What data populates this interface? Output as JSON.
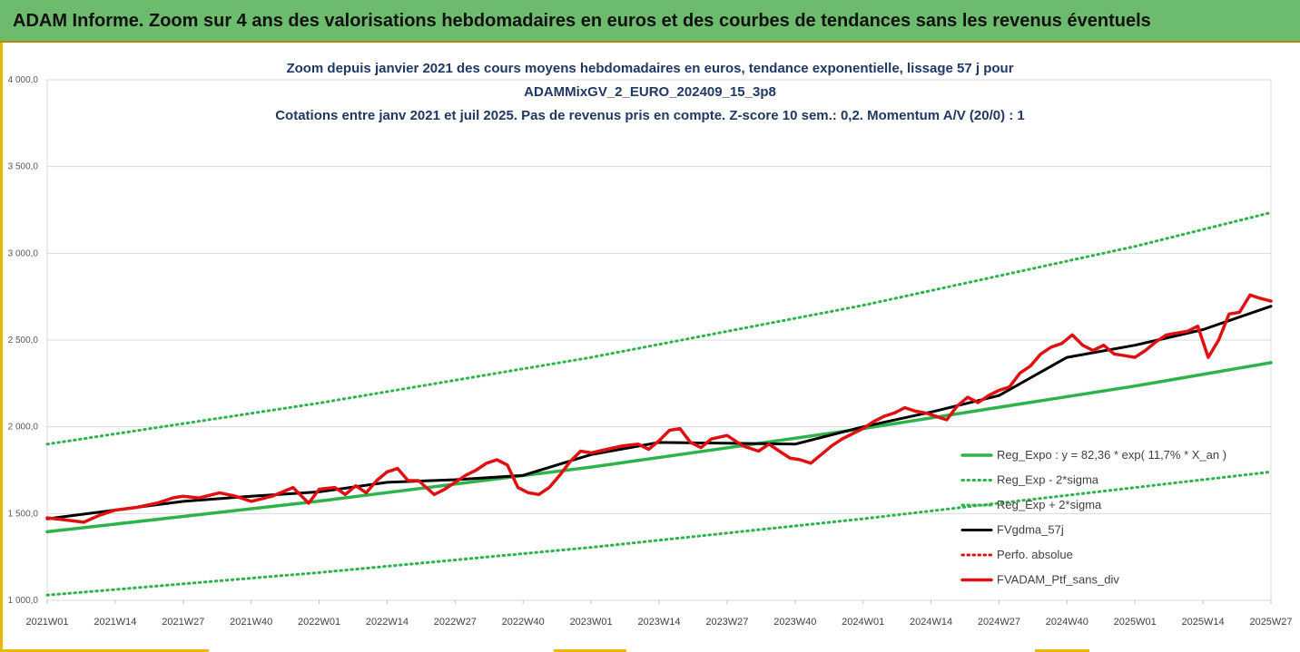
{
  "banner": {
    "title": "ADAM Informe. Zoom sur 4 ans des valorisations hebdomadaires en euros et des courbes de tendances sans les revenus éventuels"
  },
  "colors": {
    "banner_bg": "#6dbb6c",
    "title_text": "#1f3864",
    "regression": "#2db34a",
    "sigma": "#2db34a",
    "smoothed": "#000000",
    "portfolio": "#e01010",
    "accent_frame": "#e8b90c"
  },
  "chart_data": {
    "type": "line",
    "title_lines": [
      "Zoom depuis janvier 2021 des cours moyens hebdomadaires  en euros, tendance exponentielle, lissage 57 j pour",
      "ADAMMixGV_2_EURO_202409_15_3p8",
      "Cotations entre janv 2021 et juil 2025. Pas de revenus pris en compte. Z-score 10 sem.: 0,2. Momentum A/V (20/0) : 1"
    ],
    "xlabel": "",
    "ylabel": "",
    "ylim": [
      1000,
      4000
    ],
    "y_ticks": [
      "1 000,0",
      "1 500,0",
      "2 000,0",
      "2 500,0",
      "3 000,0",
      "3 500,0",
      "4 000,0"
    ],
    "x_ticks": [
      "2021W01",
      "2021W14",
      "2021W27",
      "2021W40",
      "2022W01",
      "2022W14",
      "2022W27",
      "2022W40",
      "2023W01",
      "2023W14",
      "2023W27",
      "2023W40",
      "2024W01",
      "2024W14",
      "2024W27",
      "2024W40",
      "2025W01",
      "2025W14",
      "2025W27"
    ],
    "grid": "horizontal",
    "legend_position": "right",
    "series": [
      {
        "name": "Reg_Expo : y = 82,36 * exp( 11,7% *  X_an )",
        "style": "solid-thick",
        "color": "#2db34a",
        "x": [
          "2021W01",
          "2022W01",
          "2023W01",
          "2024W01",
          "2025W01",
          "2025W27"
        ],
        "values": [
          1395,
          1572,
          1768,
          1990,
          2235,
          2370
        ]
      },
      {
        "name": "Reg_Exp - 2*sigma",
        "style": "dotted",
        "color": "#2db34a",
        "x": [
          "2021W01",
          "2022W01",
          "2023W01",
          "2024W01",
          "2025W01",
          "2025W27"
        ],
        "values": [
          1900,
          2137,
          2400,
          2700,
          3040,
          3235
        ]
      },
      {
        "name": "Reg_Exp + 2*sigma",
        "style": "dotted",
        "color": "#2db34a",
        "x": [
          "2021W01",
          "2022W01",
          "2023W01",
          "2024W01",
          "2025W01",
          "2025W27"
        ],
        "values": [
          1030,
          1160,
          1305,
          1470,
          1650,
          1740
        ]
      },
      {
        "name": "FVgdma_57j",
        "style": "solid",
        "color": "#000000",
        "x": [
          "2021W01",
          "2021W14",
          "2021W27",
          "2021W40",
          "2022W01",
          "2022W14",
          "2022W27",
          "2022W40",
          "2023W01",
          "2023W14",
          "2023W27",
          "2023W40",
          "2024W01",
          "2024W14",
          "2024W27",
          "2024W40",
          "2025W01",
          "2025W14",
          "2025W27"
        ],
        "values": [
          1470,
          1520,
          1570,
          1600,
          1625,
          1680,
          1695,
          1720,
          1840,
          1910,
          1905,
          1900,
          2000,
          2085,
          2180,
          2400,
          2470,
          2560,
          2695
        ]
      },
      {
        "name": "Perfo. absolue",
        "style": "dotted",
        "color": "#e01010",
        "x": [],
        "values": []
      },
      {
        "name": "FVADAM_Ptf_sans_div",
        "style": "solid-thick",
        "color": "#e01010",
        "x": [
          "2021W01",
          "2021W04",
          "2021W08",
          "2021W11",
          "2021W14",
          "2021W18",
          "2021W22",
          "2021W25",
          "2021W27",
          "2021W30",
          "2021W34",
          "2021W37",
          "2021W40",
          "2021W44",
          "2021W48",
          "2021W51",
          "2022W01",
          "2022W04",
          "2022W06",
          "2022W08",
          "2022W10",
          "2022W12",
          "2022W14",
          "2022W16",
          "2022W18",
          "2022W20",
          "2022W23",
          "2022W25",
          "2022W27",
          "2022W29",
          "2022W31",
          "2022W33",
          "2022W35",
          "2022W37",
          "2022W39",
          "2022W41",
          "2022W43",
          "2022W45",
          "2022W47",
          "2022W49",
          "2022W51",
          "2023W01",
          "2023W04",
          "2023W07",
          "2023W10",
          "2023W12",
          "2023W14",
          "2023W16",
          "2023W18",
          "2023W20",
          "2023W22",
          "2023W24",
          "2023W27",
          "2023W30",
          "2023W33",
          "2023W35",
          "2023W37",
          "2023W39",
          "2023W41",
          "2023W43",
          "2023W45",
          "2023W47",
          "2023W49",
          "2023W51",
          "2024W01",
          "2024W03",
          "2024W05",
          "2024W07",
          "2024W09",
          "2024W11",
          "2024W13",
          "2024W15",
          "2024W17",
          "2024W19",
          "2024W21",
          "2024W23",
          "2024W25",
          "2024W27",
          "2024W29",
          "2024W31",
          "2024W33",
          "2024W35",
          "2024W37",
          "2024W39",
          "2024W41",
          "2024W43",
          "2024W45",
          "2024W47",
          "2024W49",
          "2024W51",
          "2025W01",
          "2025W03",
          "2025W05",
          "2025W07",
          "2025W09",
          "2025W11",
          "2025W13",
          "2025W15",
          "2025W17",
          "2025W19",
          "2025W21",
          "2025W23",
          "2025W25",
          "2025W27"
        ],
        "values": [
          1475,
          1465,
          1450,
          1490,
          1520,
          1535,
          1560,
          1590,
          1600,
          1590,
          1620,
          1600,
          1570,
          1600,
          1650,
          1560,
          1640,
          1650,
          1610,
          1660,
          1620,
          1690,
          1740,
          1760,
          1690,
          1690,
          1610,
          1640,
          1680,
          1720,
          1750,
          1790,
          1810,
          1780,
          1650,
          1620,
          1610,
          1650,
          1720,
          1800,
          1860,
          1850,
          1870,
          1890,
          1900,
          1870,
          1920,
          1980,
          1990,
          1910,
          1880,
          1930,
          1950,
          1890,
          1860,
          1900,
          1860,
          1820,
          1810,
          1790,
          1840,
          1890,
          1930,
          1960,
          1990,
          2030,
          2060,
          2080,
          2110,
          2090,
          2080,
          2060,
          2040,
          2120,
          2170,
          2140,
          2180,
          2210,
          2230,
          2310,
          2350,
          2420,
          2460,
          2480,
          2530,
          2470,
          2440,
          2470,
          2420,
          2410,
          2400,
          2440,
          2490,
          2530,
          2540,
          2550,
          2580,
          2400,
          2500,
          2650,
          2660,
          2760,
          2740,
          2725
        ]
      }
    ]
  }
}
